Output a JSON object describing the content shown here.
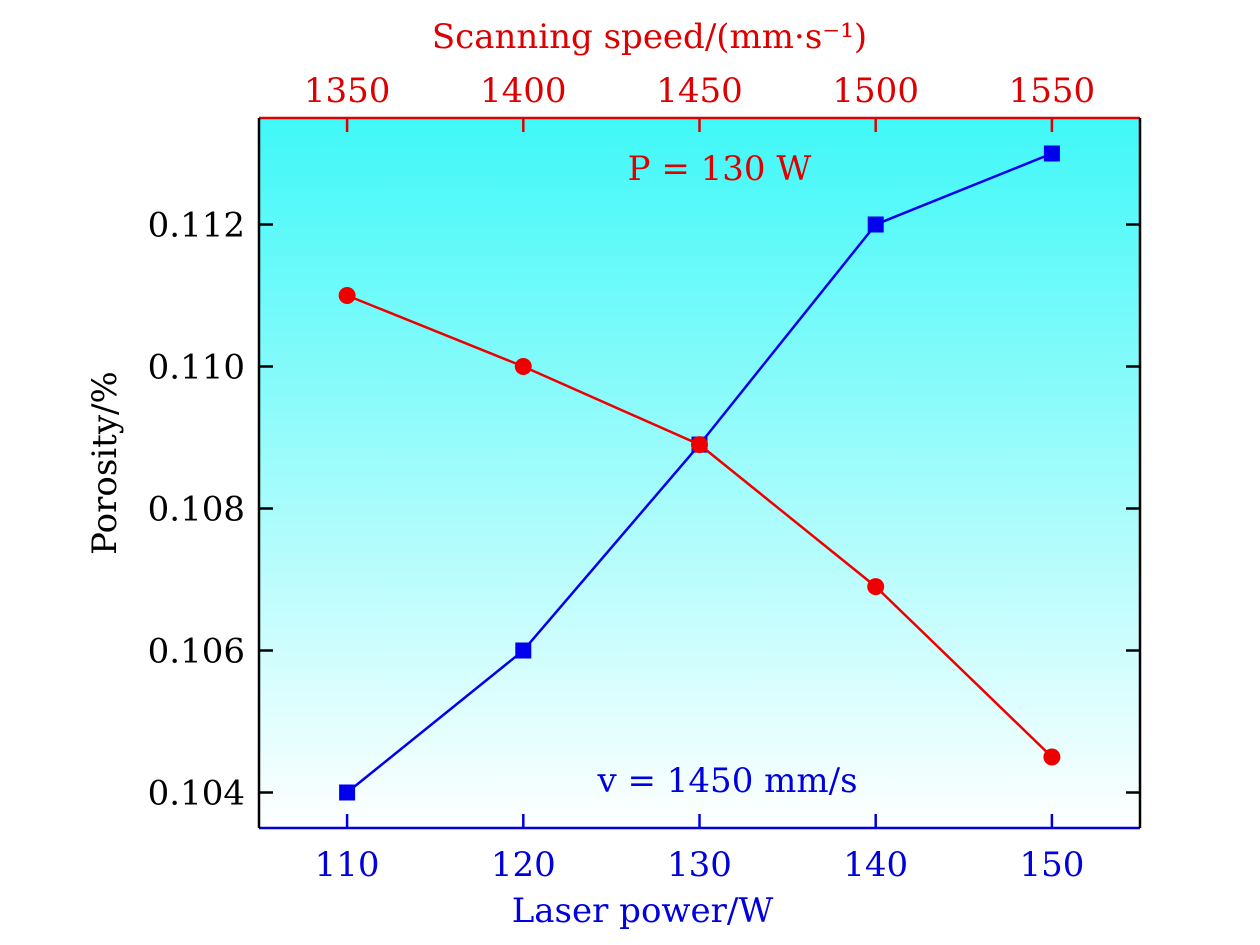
{
  "chart_data": {
    "type": "line",
    "ylabel": "Porosity/%",
    "ylim": [
      0.1035,
      0.1135
    ],
    "y_ticks": [
      0.104,
      0.106,
      0.108,
      0.11,
      0.112
    ],
    "y_tick_labels": [
      "0.104",
      "0.106",
      "0.108",
      "0.110",
      "0.112"
    ],
    "bottom_axis": {
      "label": "Laser power/W",
      "color": "#0000dd",
      "range": [
        105,
        155
      ],
      "ticks": [
        110,
        120,
        130,
        140,
        150
      ],
      "tick_labels": [
        "110",
        "120",
        "130",
        "140",
        "150"
      ]
    },
    "top_axis": {
      "label": "Scanning speed/(mm·s⁻¹)",
      "color": "#dd0000",
      "range": [
        1325,
        1575
      ],
      "ticks": [
        1350,
        1400,
        1450,
        1500,
        1550
      ],
      "tick_labels": [
        "1350",
        "1400",
        "1450",
        "1500",
        "1550"
      ]
    },
    "series": [
      {
        "name": "Laser power",
        "axis": "bottom",
        "marker": "square",
        "color": "#0000ee",
        "x": [
          110,
          120,
          130,
          140,
          150
        ],
        "values": [
          0.104,
          0.106,
          0.1089,
          0.112,
          0.113
        ]
      },
      {
        "name": "Scanning speed",
        "axis": "top",
        "marker": "circle",
        "color": "#ee0000",
        "x": [
          1350,
          1400,
          1450,
          1500,
          1550
        ],
        "values": [
          0.111,
          0.11,
          0.1089,
          0.1069,
          0.1045
        ]
      }
    ],
    "annotations": [
      {
        "id": "power",
        "text": "P = 130 W",
        "color": "#dd0000",
        "location": "top-center"
      },
      {
        "id": "speed",
        "text": "v = 1450 mm/s",
        "color": "#0000dd",
        "location": "bottom-center"
      }
    ],
    "background": {
      "top_color": "#40f8f8",
      "bottom_color": "#ffffff"
    }
  }
}
